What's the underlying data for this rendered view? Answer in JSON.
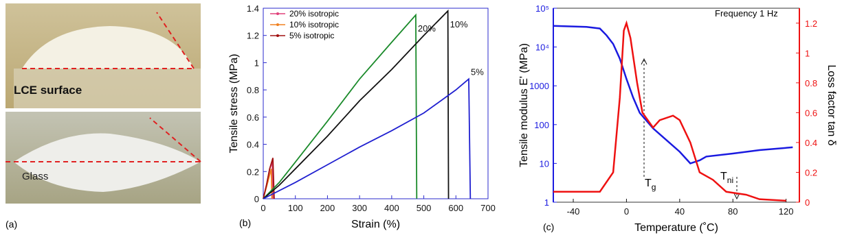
{
  "panel_labels": [
    "(a)",
    "(b)",
    "(c)"
  ],
  "photos": {
    "labels": [
      "LCE surface",
      "Glass"
    ]
  },
  "chart_data": [
    {
      "type": "line",
      "xlabel": "Strain (%)",
      "ylabel": "Tensile stress (MPa)",
      "xlim": [
        0,
        700
      ],
      "xticks": [
        0,
        100,
        200,
        300,
        400,
        500,
        600,
        700
      ],
      "ylim": [
        0,
        1.4
      ],
      "yticks": [
        0,
        0.2,
        0.4,
        0.6,
        0.8,
        1,
        1.2,
        1.4
      ],
      "axis_color": "#2a2acc",
      "legend": "upper left",
      "series": [
        {
          "name": "20% isotropic",
          "color": "#e0407a",
          "x": [
            0,
            10,
            20,
            28,
            30
          ],
          "values": [
            0,
            0.1,
            0.22,
            0.27,
            0
          ]
        },
        {
          "name": "10% isotropic",
          "color": "#f08020",
          "x": [
            0,
            15,
            25,
            27
          ],
          "values": [
            0,
            0.13,
            0.22,
            0
          ]
        },
        {
          "name": "5% isotropic",
          "color": "#a01010",
          "x": [
            0,
            10,
            20,
            30,
            34
          ],
          "values": [
            0,
            0.1,
            0.22,
            0.3,
            0
          ]
        },
        {
          "label": "20%",
          "color": "#1a8a2a",
          "x": [
            0,
            50,
            100,
            200,
            300,
            400,
            475,
            478
          ],
          "values": [
            0,
            0.12,
            0.27,
            0.57,
            0.88,
            1.15,
            1.35,
            0
          ]
        },
        {
          "label": "10%",
          "color": "#111111",
          "x": [
            0,
            50,
            100,
            200,
            300,
            400,
            500,
            575,
            577
          ],
          "values": [
            0,
            0.1,
            0.22,
            0.46,
            0.72,
            0.95,
            1.2,
            1.38,
            0
          ]
        },
        {
          "label": "5%",
          "color": "#1f1fd0",
          "x": [
            0,
            100,
            200,
            300,
            400,
            500,
            600,
            640,
            645
          ],
          "values": [
            0,
            0.12,
            0.25,
            0.38,
            0.5,
            0.63,
            0.8,
            0.88,
            0
          ]
        }
      ]
    },
    {
      "type": "line",
      "xlabel": "Temperature (˚C)",
      "ylabel": "Tensile modulus E' (MPa)",
      "y2label": "Loss factor tan δ",
      "xlim": [
        -55,
        130
      ],
      "xticks": [
        -40,
        0,
        40,
        80,
        120
      ],
      "ylog": true,
      "ylim": [
        1,
        100000
      ],
      "yticks": [
        1,
        10,
        100,
        1000,
        {
          "value": 10000,
          "label": "10⁴"
        },
        {
          "value": 100000,
          "label": "10⁵"
        }
      ],
      "y2lim": [
        0,
        1.3
      ],
      "y2ticks": [
        0,
        0.2,
        0.4,
        0.6,
        0.8,
        1,
        1.2
      ],
      "annotations": [
        {
          "text": "Frequency 1 Hz"
        },
        {
          "text": "T",
          "subscript": "g"
        },
        {
          "text": "T",
          "subscript": "ni"
        }
      ],
      "series": [
        {
          "color": "#1a1ae0",
          "x": [
            -55,
            -30,
            -20,
            -15,
            -10,
            -5,
            0,
            5,
            10,
            20,
            30,
            40,
            48,
            55,
            60,
            80,
            100,
            125
          ],
          "values": [
            35000,
            33000,
            30000,
            20000,
            12000,
            5000,
            1500,
            500,
            200,
            80,
            40,
            20,
            10,
            12,
            15,
            18,
            22,
            26
          ]
        },
        {
          "color": "#ee1111",
          "axis": "y2",
          "x": [
            -55,
            -20,
            -10,
            -5,
            -2,
            0,
            3,
            8,
            12,
            20,
            25,
            35,
            40,
            48,
            55,
            65,
            75,
            90,
            100,
            120
          ],
          "values": [
            0.07,
            0.07,
            0.2,
            0.7,
            1.15,
            1.2,
            1.1,
            0.8,
            0.6,
            0.5,
            0.55,
            0.58,
            0.55,
            0.4,
            0.2,
            0.15,
            0.07,
            0.05,
            0.02,
            0.01
          ]
        }
      ]
    }
  ]
}
